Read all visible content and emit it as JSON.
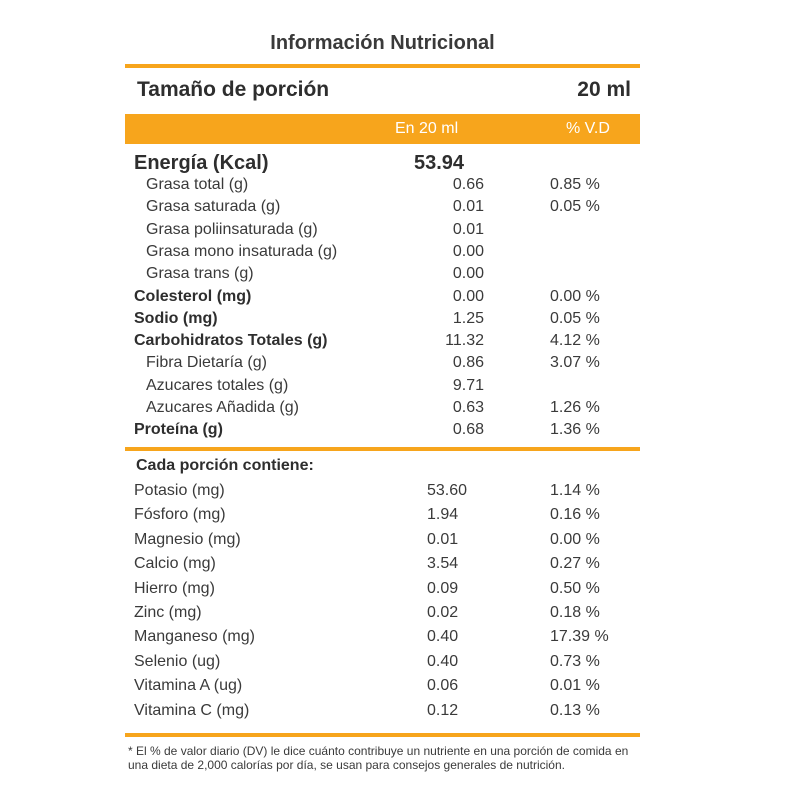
{
  "title": "Información Nutricional",
  "serving": {
    "label": "Tamaño de porción",
    "value": "20 ml"
  },
  "header": {
    "amount_label": "En 20 ml",
    "dv_label": "% V.D"
  },
  "energy": {
    "label": "Energía (Kcal)",
    "value": "53.94"
  },
  "nutrients": [
    {
      "label": "Grasa total (g)",
      "amount": "0.66",
      "dv": "0.85 %",
      "bold": false
    },
    {
      "label": "Grasa saturada (g)",
      "amount": "0.01",
      "dv": "0.05 %",
      "bold": false
    },
    {
      "label": "Grasa poliinsaturada (g)",
      "amount": "0.01",
      "dv": "",
      "bold": false
    },
    {
      "label": "Grasa mono insaturada (g)",
      "amount": "0.00",
      "dv": "",
      "bold": false
    },
    {
      "label": "Grasa trans (g)",
      "amount": "0.00",
      "dv": "",
      "bold": false
    },
    {
      "label": "Colesterol (mg)",
      "amount": "0.00",
      "dv": "0.00 %",
      "bold": true
    },
    {
      "label": "Sodio (mg)",
      "amount": "1.25",
      "dv": "0.05 %",
      "bold": true
    },
    {
      "label": "Carbohidratos Totales (g)",
      "amount": "11.32",
      "dv": "4.12 %",
      "bold": true
    },
    {
      "label": "Fibra Dietaría (g)",
      "amount": "0.86",
      "dv": "3.07 %",
      "bold": false
    },
    {
      "label": "Azucares totales (g)",
      "amount": "9.71",
      "dv": "",
      "bold": false
    },
    {
      "label": "Azucares Añadida (g)",
      "amount": "0.63",
      "dv": "1.26 %",
      "bold": false
    },
    {
      "label": "Proteína (g)",
      "amount": "0.68",
      "dv": "1.36 %",
      "bold": true
    }
  ],
  "minerals_title": "Cada porción contiene:",
  "minerals": [
    {
      "label": "Potasio (mg)",
      "amount": "53.60",
      "dv": "1.14 %"
    },
    {
      "label": "Fósforo (mg)",
      "amount": "1.94",
      "dv": "0.16 %"
    },
    {
      "label": "Magnesio (mg)",
      "amount": "0.01",
      "dv": "0.00 %"
    },
    {
      "label": "Calcio (mg)",
      "amount": "3.54",
      "dv": "0.27 %"
    },
    {
      "label": "Hierro (mg)",
      "amount": "0.09",
      "dv": "0.50 %"
    },
    {
      "label": "Zinc (mg)",
      "amount": "0.02",
      "dv": "0.18 %"
    },
    {
      "label": "Manganeso (mg)",
      "amount": "0.40",
      "dv": "17.39 %"
    },
    {
      "label": "Selenio (ug)",
      "amount": "0.40",
      "dv": "0.73 %"
    },
    {
      "label": "Vitamina A (ug)",
      "amount": "0.06",
      "dv": "0.01 %"
    },
    {
      "label": "Vitamina C (mg)",
      "amount": "0.12",
      "dv": "0.13 %"
    }
  ],
  "footnote": "* El % de valor diario (DV) le dice cuánto contribuye un nutriente en una porción de comida en una dieta de 2,000 calorías por día, se usan para consejos generales de nutrición.",
  "colors": {
    "accent": "#f7a51c",
    "text": "#2e2e2e"
  }
}
